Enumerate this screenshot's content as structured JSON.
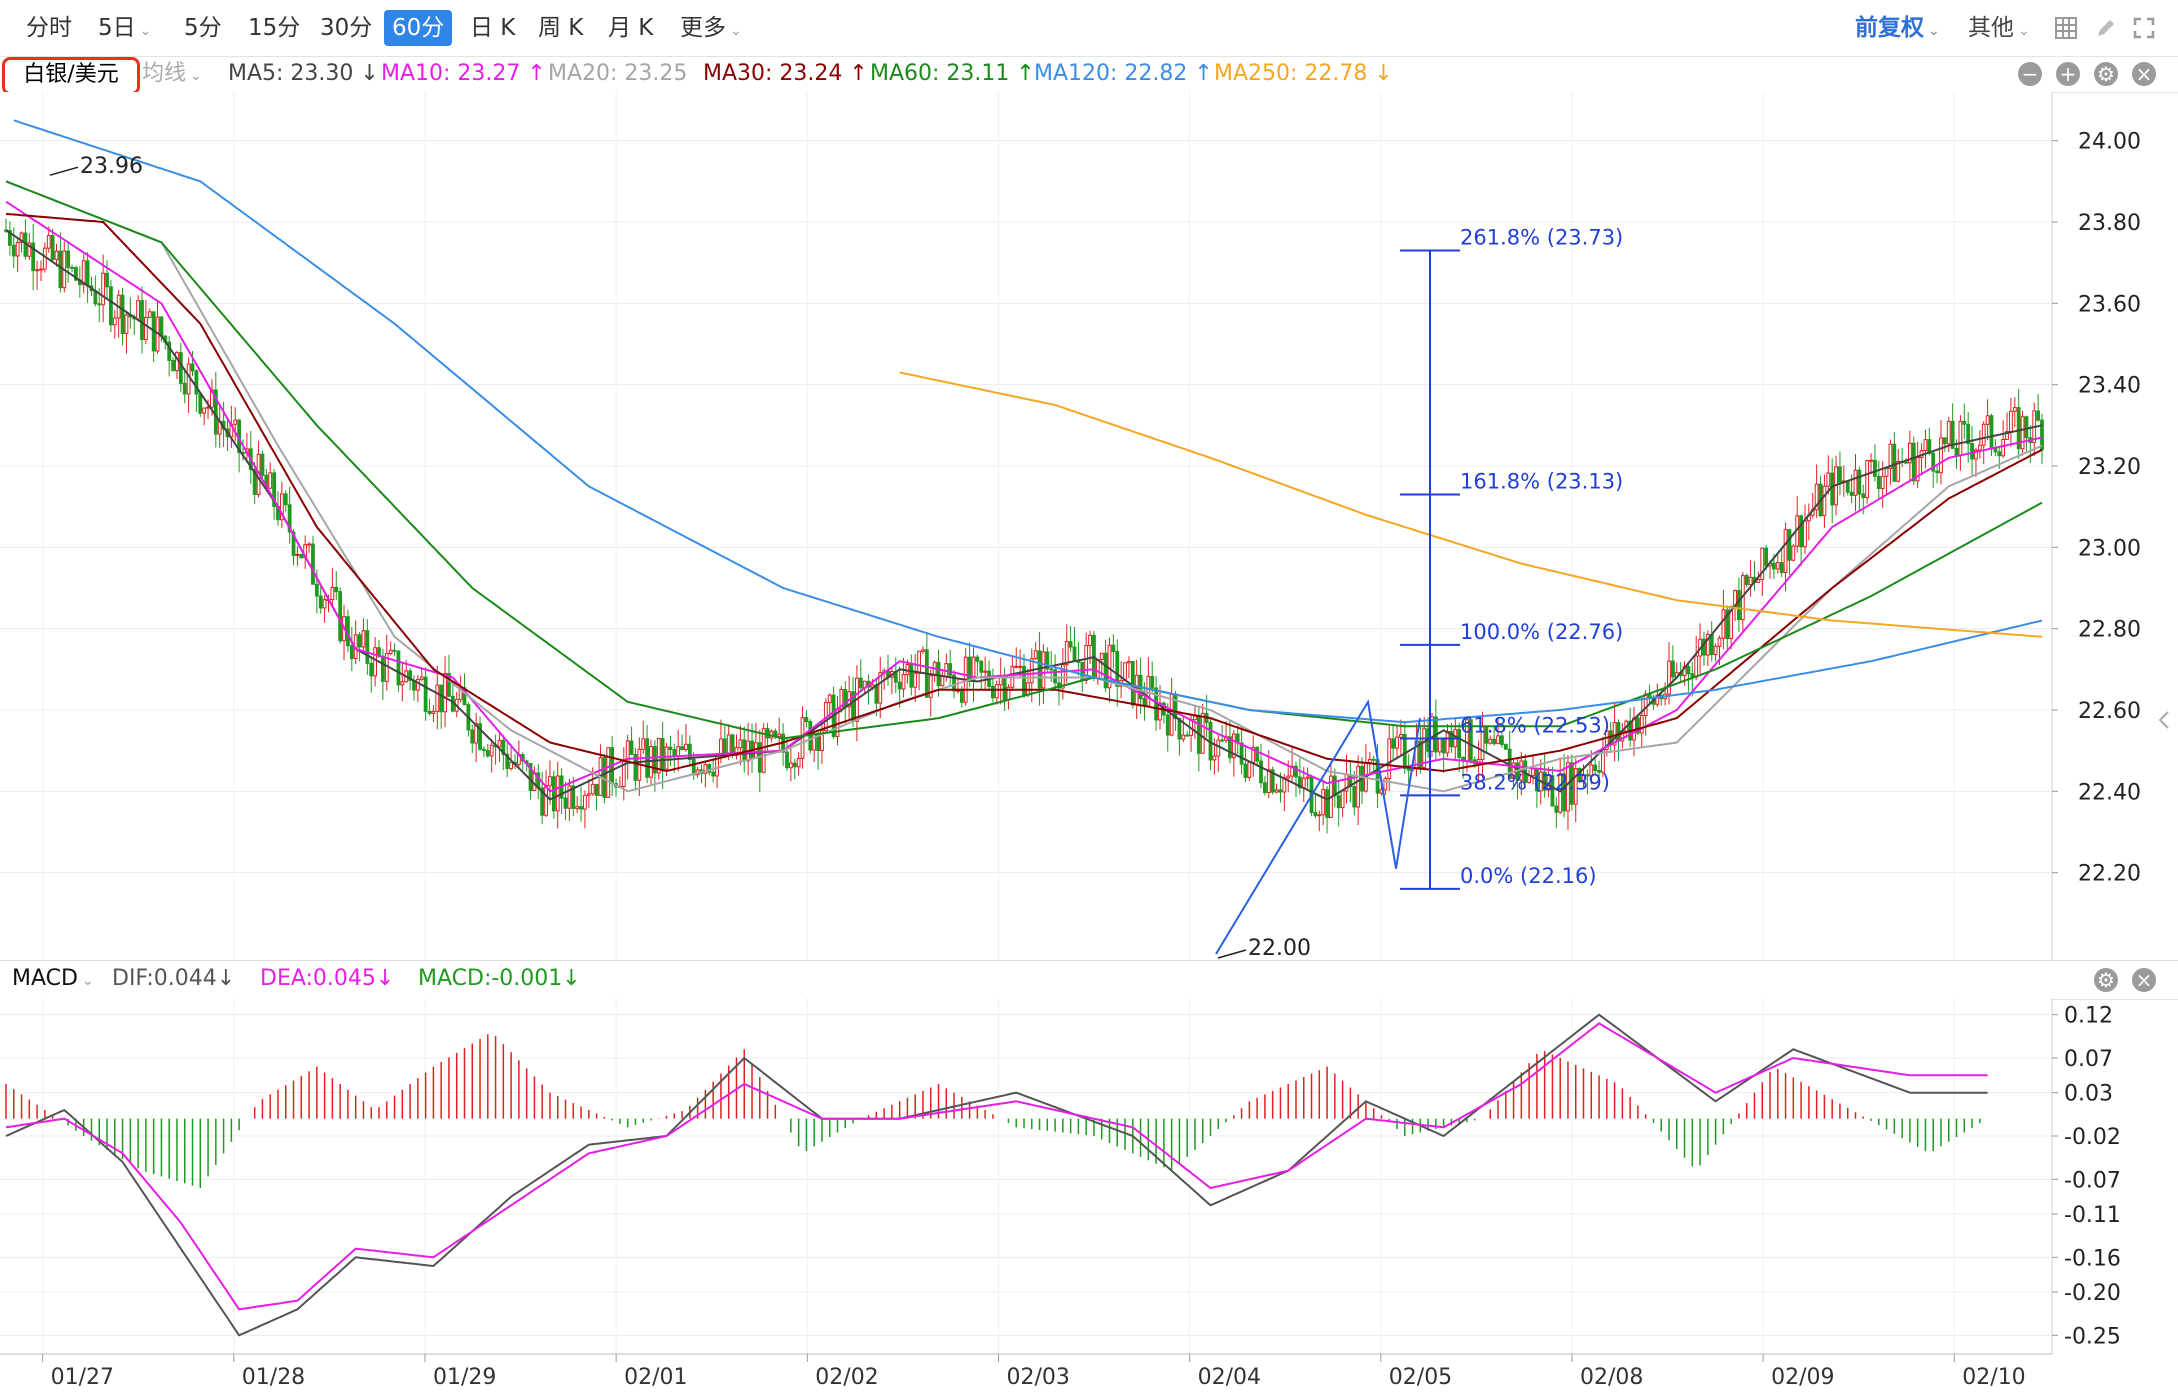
{
  "toolbar": {
    "tabs": [
      "分时",
      "5日",
      "5分",
      "15分",
      "30分",
      "60分",
      "日 K",
      "周 K",
      "月 K",
      "更多"
    ],
    "active_tab": "60分",
    "adjust": "前复权",
    "other": "其他"
  },
  "symbol": "白银/美元",
  "ma_style": "均线",
  "ma_legend": [
    {
      "text": "MA5: 23.30 ↓",
      "color": "#444444"
    },
    {
      "text": "MA10: 23.27 ↑",
      "color": "#e61ee6"
    },
    {
      "text": "MA20: 23.25",
      "color": "#a6a6a6"
    },
    {
      "text": "MA30: 23.24 ↑",
      "color": "#8b0000"
    },
    {
      "text": "MA60: 23.11 ↑",
      "color": "#1a8a1a"
    },
    {
      "text": "MA120: 22.82 ↑",
      "color": "#3b8ee6"
    },
    {
      "text": "MA250: 22.78 ↓",
      "color": "#f5a623"
    }
  ],
  "macd_legend": {
    "name": "MACD",
    "dif": "DIF:0.044↓",
    "dea": "DEA:0.045↓",
    "macd": "MACD:-0.001↓"
  },
  "colors": {
    "up": "#e02020",
    "down": "#1f9a1f",
    "fib": "#1f3fd8",
    "dif": "#555555",
    "dea": "#e61ee6"
  },
  "chart_data": [
    {
      "type": "candlestick",
      "ylim": [
        22.0,
        24.1
      ],
      "y_ticks": [
        "24.00",
        "23.80",
        "23.60",
        "23.40",
        "23.20",
        "23.00",
        "22.80",
        "22.60",
        "22.40",
        "22.20"
      ],
      "x_dates": [
        "01/27",
        "01/28",
        "01/29",
        "02/01",
        "02/02",
        "02/03",
        "02/04",
        "02/05",
        "02/08",
        "02/09",
        "02/10"
      ],
      "high_marker": "23.96",
      "low_marker": "22.00",
      "fibonacci": [
        {
          "label": "261.8% (23.73)",
          "value": 23.73
        },
        {
          "label": "161.8% (23.13)",
          "value": 23.13
        },
        {
          "label": "100.0% (22.76)",
          "value": 22.76
        },
        {
          "label": "61.8% (22.53)",
          "value": 22.53
        },
        {
          "label": "38.2% (22.39)",
          "value": 22.39
        },
        {
          "label": "0.0% (22.16)",
          "value": 22.16
        }
      ],
      "series": [
        {
          "name": "MA5",
          "anchors": [
            [
              0,
              23.78
            ],
            [
              40,
              23.52
            ],
            [
              70,
              23.1
            ],
            [
              90,
              22.75
            ],
            [
              115,
              22.62
            ],
            [
              140,
              22.38
            ],
            [
              160,
              22.47
            ],
            [
              200,
              22.5
            ],
            [
              230,
              22.7
            ],
            [
              250,
              22.67
            ],
            [
              280,
              22.73
            ],
            [
              310,
              22.52
            ],
            [
              340,
              22.38
            ],
            [
              370,
              22.55
            ],
            [
              400,
              22.4
            ],
            [
              430,
              22.68
            ],
            [
              470,
              23.15
            ],
            [
              500,
              23.25
            ],
            [
              524,
              23.3
            ]
          ]
        },
        {
          "name": "MA10",
          "anchors": [
            [
              0,
              23.85
            ],
            [
              40,
              23.6
            ],
            [
              70,
              23.1
            ],
            [
              90,
              22.75
            ],
            [
              115,
              22.68
            ],
            [
              140,
              22.4
            ],
            [
              160,
              22.48
            ],
            [
              200,
              22.5
            ],
            [
              230,
              22.72
            ],
            [
              250,
              22.68
            ],
            [
              280,
              22.7
            ],
            [
              310,
              22.55
            ],
            [
              340,
              22.42
            ],
            [
              370,
              22.48
            ],
            [
              400,
              22.45
            ],
            [
              430,
              22.6
            ],
            [
              470,
              23.05
            ],
            [
              500,
              23.22
            ],
            [
              524,
              23.27
            ]
          ]
        },
        {
          "name": "MA20",
          "anchors": [
            [
              0,
              23.9
            ],
            [
              40,
              23.75
            ],
            [
              70,
              23.25
            ],
            [
              100,
              22.78
            ],
            [
              130,
              22.55
            ],
            [
              160,
              22.4
            ],
            [
              200,
              22.5
            ],
            [
              230,
              22.62
            ],
            [
              250,
              22.68
            ],
            [
              280,
              22.68
            ],
            [
              310,
              22.6
            ],
            [
              340,
              22.45
            ],
            [
              370,
              22.4
            ],
            [
              400,
              22.48
            ],
            [
              430,
              22.52
            ],
            [
              470,
              22.9
            ],
            [
              500,
              23.15
            ],
            [
              524,
              23.25
            ]
          ]
        },
        {
          "name": "MA30",
          "anchors": [
            [
              0,
              23.82
            ],
            [
              25,
              23.8
            ],
            [
              50,
              23.55
            ],
            [
              80,
              23.05
            ],
            [
              110,
              22.7
            ],
            [
              140,
              22.52
            ],
            [
              170,
              22.45
            ],
            [
              200,
              22.52
            ],
            [
              240,
              22.65
            ],
            [
              270,
              22.65
            ],
            [
              310,
              22.58
            ],
            [
              340,
              22.48
            ],
            [
              370,
              22.45
            ],
            [
              400,
              22.5
            ],
            [
              430,
              22.58
            ],
            [
              470,
              22.9
            ],
            [
              500,
              23.12
            ],
            [
              524,
              23.24
            ]
          ]
        },
        {
          "name": "MA60",
          "anchors": [
            [
              0,
              23.9
            ],
            [
              40,
              23.75
            ],
            [
              80,
              23.3
            ],
            [
              120,
              22.9
            ],
            [
              160,
              22.62
            ],
            [
              200,
              22.53
            ],
            [
              240,
              22.58
            ],
            [
              280,
              22.68
            ],
            [
              320,
              22.6
            ],
            [
              360,
              22.56
            ],
            [
              400,
              22.56
            ],
            [
              440,
              22.7
            ],
            [
              480,
              22.88
            ],
            [
              524,
              23.11
            ]
          ]
        },
        {
          "name": "MA120",
          "anchors": [
            [
              2,
              24.05
            ],
            [
              50,
              23.9
            ],
            [
              100,
              23.55
            ],
            [
              150,
              23.15
            ],
            [
              200,
              22.9
            ],
            [
              240,
              22.78
            ],
            [
              280,
              22.68
            ],
            [
              320,
              22.6
            ],
            [
              360,
              22.57
            ],
            [
              400,
              22.6
            ],
            [
              440,
              22.65
            ],
            [
              480,
              22.72
            ],
            [
              524,
              22.82
            ]
          ]
        },
        {
          "name": "MA250",
          "anchors": [
            [
              230,
              23.43
            ],
            [
              270,
              23.35
            ],
            [
              310,
              23.22
            ],
            [
              350,
              23.08
            ],
            [
              390,
              22.96
            ],
            [
              430,
              22.87
            ],
            [
              470,
              22.82
            ],
            [
              524,
              22.78
            ]
          ]
        }
      ]
    },
    {
      "type": "macd",
      "ylim": [
        -0.26,
        0.13
      ],
      "y_ticks": [
        "0.12",
        "0.07",
        "0.03",
        "-0.02",
        "-0.07",
        "-0.11",
        "-0.16",
        "-0.20",
        "-0.25"
      ],
      "series": [
        {
          "name": "DIF",
          "anchors": [
            [
              0,
              -0.02
            ],
            [
              15,
              0.01
            ],
            [
              30,
              -0.05
            ],
            [
              45,
              -0.15
            ],
            [
              60,
              -0.25
            ],
            [
              75,
              -0.22
            ],
            [
              90,
              -0.16
            ],
            [
              110,
              -0.17
            ],
            [
              130,
              -0.09
            ],
            [
              150,
              -0.03
            ],
            [
              170,
              -0.02
            ],
            [
              190,
              0.07
            ],
            [
              210,
              0.0
            ],
            [
              230,
              0.0
            ],
            [
              260,
              0.03
            ],
            [
              290,
              -0.02
            ],
            [
              310,
              -0.1
            ],
            [
              330,
              -0.06
            ],
            [
              350,
              0.02
            ],
            [
              370,
              -0.02
            ],
            [
              390,
              0.05
            ],
            [
              410,
              0.12
            ],
            [
              440,
              0.02
            ],
            [
              460,
              0.08
            ],
            [
              490,
              0.03
            ],
            [
              510,
              0.03
            ]
          ]
        },
        {
          "name": "DEA",
          "anchors": [
            [
              0,
              -0.01
            ],
            [
              15,
              0.0
            ],
            [
              30,
              -0.04
            ],
            [
              45,
              -0.12
            ],
            [
              60,
              -0.22
            ],
            [
              75,
              -0.21
            ],
            [
              90,
              -0.15
            ],
            [
              110,
              -0.16
            ],
            [
              130,
              -0.1
            ],
            [
              150,
              -0.04
            ],
            [
              170,
              -0.02
            ],
            [
              190,
              0.04
            ],
            [
              210,
              0.0
            ],
            [
              230,
              0.0
            ],
            [
              260,
              0.02
            ],
            [
              290,
              -0.01
            ],
            [
              310,
              -0.08
            ],
            [
              330,
              -0.06
            ],
            [
              350,
              0.0
            ],
            [
              370,
              -0.01
            ],
            [
              390,
              0.04
            ],
            [
              410,
              0.11
            ],
            [
              440,
              0.03
            ],
            [
              460,
              0.07
            ],
            [
              490,
              0.05
            ],
            [
              510,
              0.05
            ]
          ]
        },
        {
          "name": "MACD",
          "anchors": [
            [
              0,
              0.04
            ],
            [
              20,
              -0.02
            ],
            [
              35,
              -0.06
            ],
            [
              50,
              -0.08
            ],
            [
              65,
              0.02
            ],
            [
              80,
              0.06
            ],
            [
              95,
              0.01
            ],
            [
              110,
              0.06
            ],
            [
              125,
              0.1
            ],
            [
              140,
              0.03
            ],
            [
              160,
              -0.01
            ],
            [
              175,
              0.01
            ],
            [
              190,
              0.08
            ],
            [
              205,
              -0.04
            ],
            [
              220,
              0.0
            ],
            [
              240,
              0.04
            ],
            [
              260,
              -0.01
            ],
            [
              280,
              -0.02
            ],
            [
              300,
              -0.06
            ],
            [
              320,
              0.02
            ],
            [
              340,
              0.06
            ],
            [
              360,
              -0.02
            ],
            [
              380,
              0.0
            ],
            [
              395,
              0.08
            ],
            [
              415,
              0.04
            ],
            [
              435,
              -0.06
            ],
            [
              455,
              0.06
            ],
            [
              475,
              0.01
            ],
            [
              495,
              -0.04
            ],
            [
              510,
              0.0
            ]
          ]
        }
      ]
    }
  ]
}
